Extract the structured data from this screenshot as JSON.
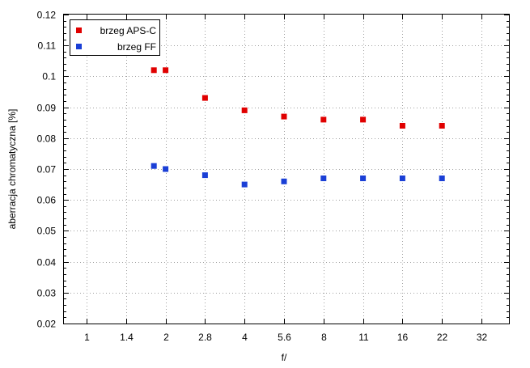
{
  "chart_data": {
    "type": "scatter",
    "xlabel": "f/",
    "ylabel": "aberracja chromatyczna [%]",
    "x_scale": "log2",
    "x_ticks": [
      {
        "value": 1,
        "label": "1"
      },
      {
        "value": 1.4,
        "label": "1.4"
      },
      {
        "value": 2,
        "label": "2"
      },
      {
        "value": 2.8,
        "label": "2.8"
      },
      {
        "value": 4,
        "label": "4"
      },
      {
        "value": 5.6,
        "label": "5.6"
      },
      {
        "value": 8,
        "label": "8"
      },
      {
        "value": 11,
        "label": "11"
      },
      {
        "value": 16,
        "label": "16"
      },
      {
        "value": 22,
        "label": "22"
      },
      {
        "value": 32,
        "label": "32"
      }
    ],
    "ylim": [
      0.02,
      0.12
    ],
    "y_ticks": [
      {
        "value": 0.02,
        "label": "0.02"
      },
      {
        "value": 0.03,
        "label": "0.03"
      },
      {
        "value": 0.04,
        "label": "0.04"
      },
      {
        "value": 0.05,
        "label": "0.05"
      },
      {
        "value": 0.06,
        "label": "0.06"
      },
      {
        "value": 0.07,
        "label": "0.07"
      },
      {
        "value": 0.08,
        "label": "0.08"
      },
      {
        "value": 0.09,
        "label": "0.09"
      },
      {
        "value": 0.1,
        "label": "0.1"
      },
      {
        "value": 0.11,
        "label": "0.11"
      },
      {
        "value": 0.12,
        "label": "0.12"
      }
    ],
    "grid": true,
    "legend_position": "top-left",
    "series": [
      {
        "name": "brzeg APS-C",
        "color": "#e00000",
        "x": [
          1.8,
          2,
          2.8,
          4,
          5.6,
          8,
          11,
          16,
          22
        ],
        "y": [
          0.102,
          0.102,
          0.093,
          0.089,
          0.087,
          0.086,
          0.086,
          0.084,
          0.084
        ]
      },
      {
        "name": "brzeg FF",
        "color": "#1a3fd6",
        "x": [
          1.8,
          2,
          2.8,
          4,
          5.6,
          8,
          11,
          16,
          22
        ],
        "y": [
          0.071,
          0.07,
          0.068,
          0.065,
          0.066,
          0.067,
          0.067,
          0.067,
          0.067
        ]
      }
    ]
  }
}
